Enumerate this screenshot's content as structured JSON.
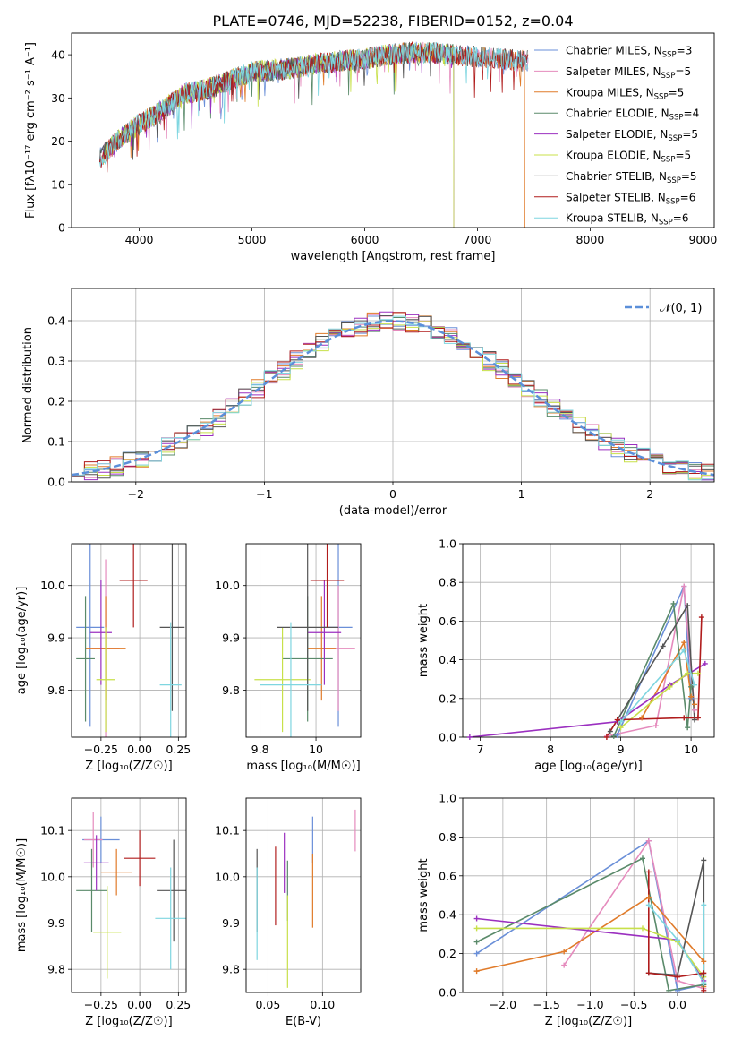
{
  "figure": {
    "title": "PLATE=0746, MJD=52238, FIBERID=0152, z=0.04"
  },
  "chart_data": [
    {
      "id": "spectrum",
      "type": "line",
      "xlabel": "wavelength [Angstrom, rest frame]",
      "ylabel": "Flux [fλ10⁻¹⁷ erg cm⁻² s⁻¹ A⁻¹]",
      "xlim": [
        3400,
        9100
      ],
      "ylim": [
        0,
        45
      ],
      "xticks": [
        4000,
        5000,
        6000,
        7000,
        8000,
        9000
      ],
      "yticks": [
        0,
        10,
        20,
        30,
        40
      ],
      "legend_position": "top-right",
      "data_wavelength_range": [
        3650,
        7450
      ],
      "continuum": {
        "x": [
          3650,
          3800,
          4000,
          4200,
          4400,
          4600,
          4800,
          5000,
          5200,
          5400,
          5600,
          5800,
          6000,
          6200,
          6400,
          6600,
          6800,
          7000,
          7200,
          7450
        ],
        "y": [
          16,
          20,
          24,
          27,
          31,
          32,
          34,
          36,
          36.5,
          37,
          38,
          38.5,
          39,
          40,
          40.5,
          40.5,
          40,
          39.5,
          39,
          38.5
        ]
      },
      "series": [
        {
          "name": "Chabrier MILES, N_SSP=3",
          "color": "#6a8fd8",
          "end_x": 7450
        },
        {
          "name": "Salpeter MILES, N_SSP=5",
          "color": "#e58bbd",
          "end_x": 7450
        },
        {
          "name": "Kroupa MILES, N_SSP=5",
          "color": "#e07b2a",
          "end_x": 7420
        },
        {
          "name": "Chabrier ELODIE, N_SSP=4",
          "color": "#5a8a6a",
          "end_x": 6790
        },
        {
          "name": "Salpeter ELODIE, N_SSP=5",
          "color": "#9b30c0",
          "end_x": 6790
        },
        {
          "name": "Kroupa ELODIE, N_SSP=5",
          "color": "#c8e04a",
          "end_x": 6790
        },
        {
          "name": "Chabrier STELIB, N_SSP=5",
          "color": "#555555",
          "end_x": 7450
        },
        {
          "name": "Salpeter STELIB, N_SSP=6",
          "color": "#b01c1c",
          "end_x": 7450
        },
        {
          "name": "Kroupa STELIB, N_SSP=6",
          "color": "#7fd6e0",
          "end_x": 7450
        }
      ]
    },
    {
      "id": "residuals",
      "type": "line",
      "xlabel": "(data-model)/error",
      "ylabel": "Normed distribution",
      "xlim": [
        -2.5,
        2.5
      ],
      "ylim": [
        0,
        0.48
      ],
      "xticks": [
        -2,
        -1,
        0,
        1,
        2
      ],
      "yticks": [
        0.0,
        0.1,
        0.2,
        0.3,
        0.4
      ],
      "legend": "𝒩(0, 1)",
      "reference_curve": {
        "mean": 0,
        "sigma": 1,
        "color": "#5b8fd9"
      },
      "bin_width": 0.1,
      "series_colors": [
        "#6a8fd8",
        "#e58bbd",
        "#e07b2a",
        "#5a8a6a",
        "#9b30c0",
        "#c8e04a",
        "#555555",
        "#b01c1c",
        "#7fd6e0"
      ]
    },
    {
      "id": "age-vs-Z",
      "type": "scatter",
      "xlabel": "Z [log₁₀(Z/Z☉)]",
      "ylabel": "age  [log₁₀(age/yr)]",
      "xlim": [
        -0.44,
        0.3
      ],
      "ylim": [
        9.71,
        10.08
      ],
      "xticks": [
        -0.25,
        0.0,
        0.25
      ],
      "xtick_labels": [
        "−0.25",
        "0.00",
        "0.25"
      ],
      "yticks": [
        9.8,
        9.9,
        10.0
      ],
      "points": [
        {
          "x": -0.32,
          "xerr": 0.09,
          "y": 9.92,
          "yerr": 0.19,
          "color": "#6a8fd8"
        },
        {
          "x": -0.22,
          "xerr": 0.09,
          "y": 9.88,
          "yerr": 0.17,
          "color": "#e58bbd"
        },
        {
          "x": -0.22,
          "xerr": 0.13,
          "y": 9.88,
          "yerr": 0.1,
          "color": "#e07b2a"
        },
        {
          "x": -0.35,
          "xerr": 0.06,
          "y": 9.86,
          "yerr": 0.12,
          "color": "#5a8a6a"
        },
        {
          "x": -0.25,
          "xerr": 0.07,
          "y": 9.91,
          "yerr": 0.1,
          "color": "#9b30c0"
        },
        {
          "x": -0.22,
          "xerr": 0.06,
          "y": 9.82,
          "yerr": 0.1,
          "color": "#c8e04a"
        },
        {
          "x": 0.21,
          "xerr": 0.08,
          "y": 9.92,
          "yerr": 0.16,
          "color": "#555555"
        },
        {
          "x": -0.04,
          "xerr": 0.09,
          "y": 10.01,
          "yerr": 0.09,
          "color": "#b01c1c"
        },
        {
          "x": 0.2,
          "xerr": 0.07,
          "y": 9.81,
          "yerr": 0.12,
          "color": "#7fd6e0"
        }
      ]
    },
    {
      "id": "age-vs-mass",
      "type": "scatter",
      "xlabel": "mass [log₁₀(M/M☉)]",
      "ylabel": "",
      "xlim": [
        9.75,
        10.16
      ],
      "ylim": [
        9.71,
        10.08
      ],
      "xticks": [
        9.8,
        10.0
      ],
      "yticks": [
        9.8,
        9.9,
        10.0
      ],
      "points": [
        {
          "x": 10.08,
          "xerr": 0.05,
          "y": 9.92,
          "yerr": 0.19,
          "color": "#6a8fd8"
        },
        {
          "x": 10.08,
          "xerr": 0.06,
          "y": 9.88,
          "yerr": 0.12,
          "color": "#e58bbd"
        },
        {
          "x": 10.02,
          "xerr": 0.05,
          "y": 9.88,
          "yerr": 0.1,
          "color": "#e07b2a"
        },
        {
          "x": 9.97,
          "xerr": 0.09,
          "y": 9.86,
          "yerr": 0.12,
          "color": "#5a8a6a"
        },
        {
          "x": 10.03,
          "xerr": 0.06,
          "y": 9.91,
          "yerr": 0.1,
          "color": "#9b30c0"
        },
        {
          "x": 9.88,
          "xerr": 0.1,
          "y": 9.82,
          "yerr": 0.1,
          "color": "#c8e04a"
        },
        {
          "x": 9.97,
          "xerr": 0.11,
          "y": 9.92,
          "yerr": 0.16,
          "color": "#555555"
        },
        {
          "x": 10.04,
          "xerr": 0.06,
          "y": 10.01,
          "yerr": 0.09,
          "color": "#b01c1c"
        },
        {
          "x": 9.91,
          "xerr": 0.11,
          "y": 9.81,
          "yerr": 0.12,
          "color": "#7fd6e0"
        }
      ]
    },
    {
      "id": "massweight-vs-age",
      "type": "line",
      "xlabel": "age  [log₁₀(age/yr)]",
      "ylabel": "mass weight",
      "xlim": [
        6.75,
        10.33
      ],
      "ylim": [
        0,
        1.0
      ],
      "xticks": [
        7,
        8,
        9,
        10
      ],
      "yticks": [
        0.0,
        0.2,
        0.4,
        0.6,
        0.8,
        1.0
      ],
      "series": [
        {
          "color": "#6a8fd8",
          "x": [
            8.95,
            9.9,
            10.0
          ],
          "y": [
            0.01,
            0.78,
            0.2
          ]
        },
        {
          "color": "#e58bbd",
          "x": [
            8.8,
            9.5,
            9.9,
            10.05
          ],
          "y": [
            0.005,
            0.06,
            0.78,
            0.14
          ]
        },
        {
          "color": "#e07b2a",
          "x": [
            9.3,
            9.9,
            10.0,
            10.05
          ],
          "y": [
            0.1,
            0.49,
            0.21,
            0.17
          ]
        },
        {
          "color": "#5a8a6a",
          "x": [
            8.9,
            9.75,
            9.95,
            10.0
          ],
          "y": [
            0.005,
            0.69,
            0.05,
            0.26
          ]
        },
        {
          "color": "#9b30c0",
          "x": [
            6.85,
            8.95,
            9.7,
            10.2
          ],
          "y": [
            0.0,
            0.08,
            0.27,
            0.38
          ]
        },
        {
          "color": "#c8e04a",
          "x": [
            9.0,
            9.7,
            9.95,
            10.1
          ],
          "y": [
            0.05,
            0.26,
            0.33,
            0.33
          ]
        },
        {
          "color": "#555555",
          "x": [
            8.85,
            9.6,
            9.95,
            10.05
          ],
          "y": [
            0.03,
            0.47,
            0.68,
            0.09
          ]
        },
        {
          "color": "#b01c1c",
          "x": [
            8.8,
            8.95,
            9.9,
            10.1,
            10.15
          ],
          "y": [
            0.0,
            0.09,
            0.1,
            0.1,
            0.62
          ]
        },
        {
          "color": "#7fd6e0",
          "x": [
            9.0,
            9.9,
            10.05
          ],
          "y": [
            0.08,
            0.45,
            0.27
          ]
        }
      ]
    },
    {
      "id": "mass-vs-Z",
      "type": "scatter",
      "xlabel": "Z [log₁₀(Z/Z☉)]",
      "ylabel": "mass [log₁₀(M/M☉)]",
      "xlim": [
        -0.44,
        0.3
      ],
      "ylim": [
        9.75,
        10.17
      ],
      "xticks": [
        -0.25,
        0.0,
        0.25
      ],
      "xtick_labels": [
        "−0.25",
        "0.00",
        "0.25"
      ],
      "yticks": [
        9.8,
        9.9,
        10.0,
        10.1
      ],
      "points": [
        {
          "x": -0.25,
          "xerr": 0.12,
          "y": 10.08,
          "yerr": 0.05,
          "color": "#6a8fd8"
        },
        {
          "x": -0.3,
          "xerr": 0.06,
          "y": 10.08,
          "yerr": 0.06,
          "color": "#e58bbd"
        },
        {
          "x": -0.15,
          "xerr": 0.1,
          "y": 10.01,
          "yerr": 0.05,
          "color": "#e07b2a"
        },
        {
          "x": -0.31,
          "xerr": 0.1,
          "y": 9.97,
          "yerr": 0.09,
          "color": "#5a8a6a"
        },
        {
          "x": -0.28,
          "xerr": 0.08,
          "y": 10.03,
          "yerr": 0.06,
          "color": "#9b30c0"
        },
        {
          "x": -0.21,
          "xerr": 0.09,
          "y": 9.88,
          "yerr": 0.1,
          "color": "#c8e04a"
        },
        {
          "x": 0.22,
          "xerr": 0.11,
          "y": 9.97,
          "yerr": 0.11,
          "color": "#555555"
        },
        {
          "x": 0.0,
          "xerr": 0.1,
          "y": 10.04,
          "yerr": 0.06,
          "color": "#b01c1c"
        },
        {
          "x": 0.2,
          "xerr": 0.1,
          "y": 9.91,
          "yerr": 0.11,
          "color": "#7fd6e0"
        }
      ]
    },
    {
      "id": "mass-vs-ebv",
      "type": "scatter",
      "xlabel": "E(B-V)",
      "ylabel": "",
      "xlim": [
        0.03,
        0.135
      ],
      "ylim": [
        9.75,
        10.17
      ],
      "xticks": [
        0.05,
        0.1
      ],
      "xtick_labels": [
        "0.05",
        "0.10"
      ],
      "yticks": [
        9.8,
        9.9,
        10.0,
        10.1
      ],
      "points": [
        {
          "x": 0.091,
          "y": 10.08,
          "yerr": 0.05,
          "color": "#6a8fd8"
        },
        {
          "x": 0.13,
          "y": 10.1,
          "yerr": 0.045,
          "color": "#e58bbd"
        },
        {
          "x": 0.091,
          "y": 9.97,
          "yerr": 0.08,
          "color": "#e07b2a"
        },
        {
          "x": 0.068,
          "y": 9.97,
          "yerr": 0.065,
          "color": "#5a8a6a"
        },
        {
          "x": 0.065,
          "y": 10.03,
          "yerr": 0.065,
          "color": "#9b30c0"
        },
        {
          "x": 0.068,
          "y": 9.86,
          "yerr": 0.1,
          "color": "#c8e04a"
        },
        {
          "x": 0.04,
          "y": 9.97,
          "yerr": 0.09,
          "color": "#555555"
        },
        {
          "x": 0.057,
          "y": 9.98,
          "yerr": 0.085,
          "color": "#b01c1c"
        },
        {
          "x": 0.04,
          "y": 9.92,
          "yerr": 0.1,
          "color": "#7fd6e0"
        }
      ]
    },
    {
      "id": "massweight-vs-Z",
      "type": "line",
      "xlabel": "Z [log₁₀(Z/Z☉)]",
      "ylabel": "mass weight",
      "xlim": [
        -2.46,
        0.42
      ],
      "ylim": [
        0,
        1.0
      ],
      "xticks": [
        -2.0,
        -1.5,
        -1.0,
        -0.5,
        0.0
      ],
      "xtick_labels": [
        "−2.0",
        "−1.5",
        "−1.0",
        "−0.5",
        "0.0"
      ],
      "yticks": [
        0.0,
        0.2,
        0.4,
        0.6,
        0.8,
        1.0
      ],
      "series": [
        {
          "color": "#6a8fd8",
          "x": [
            -2.3,
            -0.33,
            0.0,
            0.3
          ],
          "y": [
            0.2,
            0.78,
            0.01,
            0.04
          ]
        },
        {
          "color": "#e58bbd",
          "x": [
            -1.3,
            -0.33,
            0.0,
            0.3
          ],
          "y": [
            0.14,
            0.78,
            0.06,
            0.02
          ]
        },
        {
          "color": "#e07b2a",
          "x": [
            -2.3,
            -1.3,
            -0.33,
            0.3,
            0.3
          ],
          "y": [
            0.11,
            0.21,
            0.49,
            0.16,
            0.03
          ]
        },
        {
          "color": "#5a8a6a",
          "x": [
            -2.3,
            -0.4,
            -0.1,
            0.3
          ],
          "y": [
            0.26,
            0.69,
            0.01,
            0.04
          ]
        },
        {
          "color": "#9b30c0",
          "x": [
            -2.3,
            0.0,
            0.3
          ],
          "y": [
            0.38,
            0.27,
            0.06
          ]
        },
        {
          "color": "#c8e04a",
          "x": [
            -2.3,
            -0.4,
            0.0,
            0.3
          ],
          "y": [
            0.33,
            0.33,
            0.26,
            0.08
          ]
        },
        {
          "color": "#555555",
          "x": [
            -0.33,
            0.0,
            0.3,
            0.3
          ],
          "y": [
            0.1,
            0.09,
            0.68,
            0.09
          ]
        },
        {
          "color": "#b01c1c",
          "x": [
            -0.33,
            -0.33,
            0.0,
            0.3,
            0.3
          ],
          "y": [
            0.62,
            0.1,
            0.08,
            0.1,
            0.01
          ]
        },
        {
          "color": "#7fd6e0",
          "x": [
            -0.33,
            0.0,
            0.3,
            0.3
          ],
          "y": [
            0.45,
            0.27,
            0.05,
            0.45
          ]
        }
      ]
    }
  ]
}
